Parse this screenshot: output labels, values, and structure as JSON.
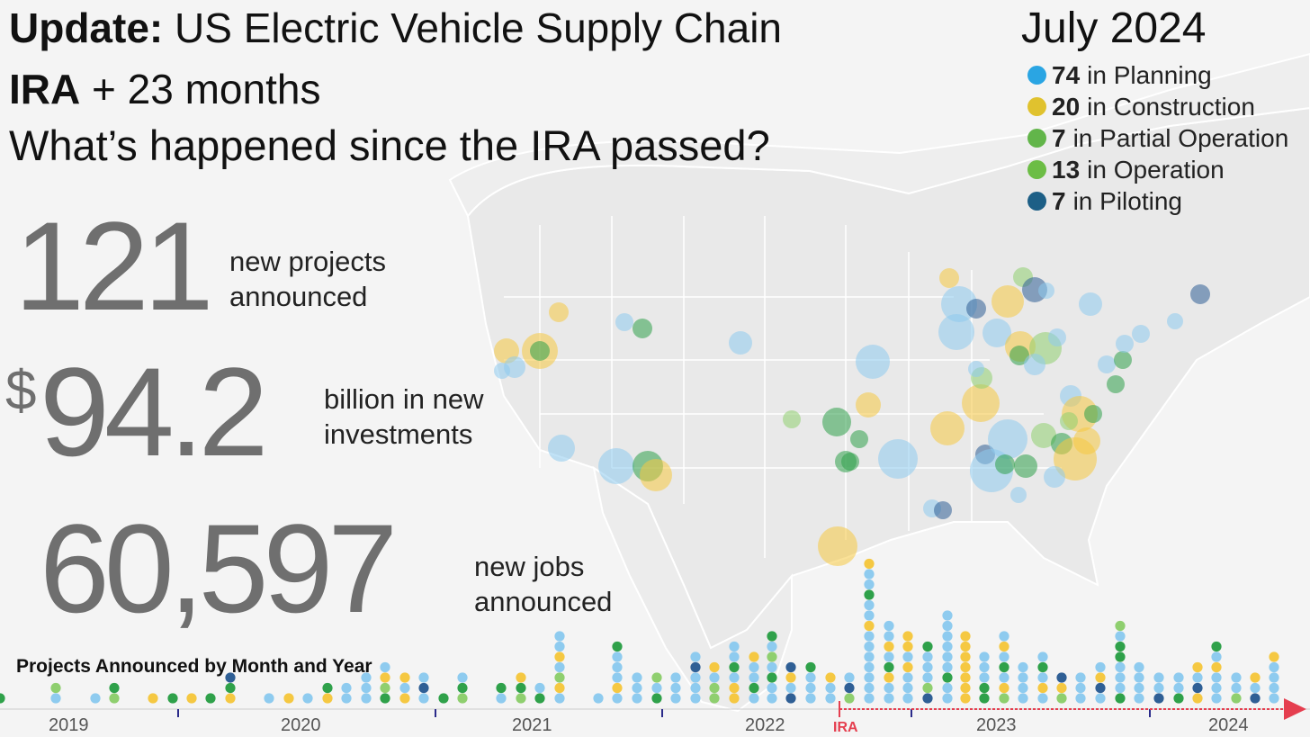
{
  "title": {
    "update_bold": "Update:",
    "update_rest": " US Electric Vehicle Supply Chain",
    "ira_bold": "IRA",
    "ira_rest": " + 23 months",
    "question": "What’s happened since the IRA passed?",
    "date": "July 2024"
  },
  "stats": {
    "projects": {
      "value": "121",
      "caption_line1": "new projects",
      "caption_line2": "announced"
    },
    "investment": {
      "currency": "$",
      "value": "94.2",
      "caption_line1": "billion in new",
      "caption_line2": "investments"
    },
    "jobs": {
      "value": "60,597",
      "caption_line1": "new jobs",
      "caption_line2": "announced"
    }
  },
  "legend": [
    {
      "count": "74",
      "label": "in Planning",
      "color": "#2aa5e3"
    },
    {
      "count": "20",
      "label": "in Construction",
      "color": "#e0c22e"
    },
    {
      "count": "7",
      "label": "in Partial Operation",
      "color": "#62b54a"
    },
    {
      "count": "13",
      "label": "in Operation",
      "color": "#6cbd45"
    },
    {
      "count": "7",
      "label": "in Piloting",
      "color": "#1d5f86"
    }
  ],
  "colors": {
    "planning": "#8ecbef",
    "construction": "#f5c842",
    "partial_operation": "#8fcf6f",
    "operation": "#2fa14a",
    "piloting": "#2f5f95",
    "ira_marker": "#e53e4f"
  },
  "timeline": {
    "title": "Projects Announced by Month and Year",
    "years": [
      "2019",
      "2020",
      "2021",
      "2022",
      "2023",
      "2024"
    ],
    "ira_label": "IRA"
  }
}
